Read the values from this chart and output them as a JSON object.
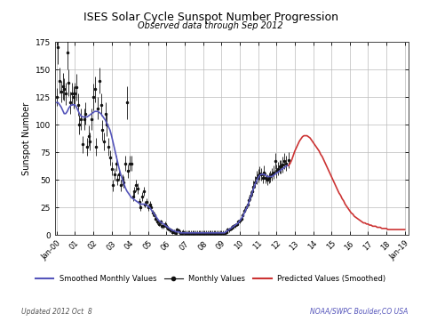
{
  "title": "ISES Solar Cycle Sunspot Number Progression",
  "subtitle": "Observed data through Sep 2012",
  "ylabel": "Sunspot Number",
  "footer_left": "Updated 2012 Oct  8",
  "footer_right": "NOAA/SWPC Boulder,CO USA",
  "ylim": [
    0,
    175
  ],
  "yticks": [
    0,
    25,
    50,
    75,
    100,
    125,
    150,
    175
  ],
  "smoothed_color": "#5555bb",
  "monthly_color": "#111111",
  "predicted_color": "#cc3333",
  "legend_entries": [
    "Smoothed Monthly Values",
    "Monthly Values",
    "Predicted Values (Smoothed)"
  ],
  "smoothed_monthly": {
    "t": [
      2000.0,
      2000.083,
      2000.167,
      2000.25,
      2000.333,
      2000.417,
      2000.5,
      2000.583,
      2000.667,
      2000.75,
      2000.833,
      2000.917,
      2001.0,
      2001.083,
      2001.167,
      2001.25,
      2001.333,
      2001.417,
      2001.5,
      2001.583,
      2001.667,
      2001.75,
      2001.833,
      2001.917,
      2002.0,
      2002.083,
      2002.167,
      2002.25,
      2002.333,
      2002.417,
      2002.5,
      2002.583,
      2002.667,
      2002.75,
      2002.833,
      2002.917,
      2003.0,
      2003.083,
      2003.167,
      2003.25,
      2003.333,
      2003.417,
      2003.5,
      2003.583,
      2003.667,
      2003.75,
      2003.833,
      2003.917,
      2004.0,
      2004.083,
      2004.167,
      2004.25,
      2004.333,
      2004.417,
      2004.5,
      2004.583,
      2004.667,
      2004.75,
      2004.833,
      2004.917,
      2005.0,
      2005.083,
      2005.167,
      2005.25,
      2005.333,
      2005.417,
      2005.5,
      2005.583,
      2005.667,
      2005.75,
      2005.833,
      2005.917,
      2006.0,
      2006.083,
      2006.167,
      2006.25,
      2006.333,
      2006.417,
      2006.5,
      2006.583,
      2006.667,
      2006.75,
      2006.833,
      2006.917,
      2007.0,
      2007.083,
      2007.167,
      2007.25,
      2007.333,
      2007.417,
      2007.5,
      2007.583,
      2007.667,
      2007.75,
      2007.833,
      2007.917,
      2008.0,
      2008.083,
      2008.167,
      2008.25,
      2008.333,
      2008.417,
      2008.5,
      2008.583,
      2008.667,
      2008.75,
      2008.833,
      2008.917,
      2009.0,
      2009.083,
      2009.167,
      2009.25,
      2009.333,
      2009.417,
      2009.5,
      2009.583,
      2009.667,
      2009.75,
      2009.833,
      2009.917,
      2010.0,
      2010.083,
      2010.167,
      2010.25,
      2010.333,
      2010.417,
      2010.5,
      2010.583,
      2010.667,
      2010.75,
      2010.833,
      2010.917,
      2011.0,
      2011.083,
      2011.167,
      2011.25,
      2011.333,
      2011.417,
      2011.5,
      2011.583,
      2011.667,
      2011.75,
      2011.833,
      2011.917,
      2012.0,
      2012.083,
      2012.167,
      2012.25,
      2012.333,
      2012.417,
      2012.5,
      2012.583,
      2012.667
    ],
    "v": [
      120,
      120,
      118,
      116,
      113,
      110,
      110,
      112,
      115,
      117,
      118,
      118,
      118,
      116,
      113,
      110,
      108,
      107,
      107,
      107,
      107,
      108,
      109,
      110,
      111,
      112,
      112,
      112,
      111,
      110,
      108,
      106,
      104,
      101,
      98,
      95,
      90,
      84,
      78,
      72,
      66,
      60,
      55,
      51,
      47,
      43,
      40,
      38,
      36,
      34,
      33,
      32,
      31,
      30,
      29,
      28,
      28,
      28,
      28,
      27,
      26,
      25,
      23,
      21,
      19,
      17,
      15,
      13,
      12,
      11,
      10,
      9,
      8,
      7,
      6,
      5,
      4,
      4,
      3,
      3,
      3,
      2,
      2,
      2,
      2,
      2,
      2,
      2,
      2,
      2,
      2,
      2,
      2,
      2,
      2,
      2,
      2,
      2,
      2,
      2,
      2,
      2,
      2,
      2,
      2,
      2,
      2,
      2,
      2,
      2,
      2,
      3,
      4,
      5,
      6,
      7,
      8,
      9,
      10,
      11,
      13,
      15,
      17,
      20,
      23,
      26,
      30,
      34,
      38,
      42,
      46,
      49,
      52,
      54,
      55,
      55,
      55,
      54,
      53,
      53,
      53,
      53,
      54,
      55,
      56,
      57,
      58,
      59,
      60,
      61,
      62,
      63,
      63
    ]
  },
  "monthly_values": {
    "t": [
      2000.0,
      2000.083,
      2000.167,
      2000.25,
      2000.333,
      2000.417,
      2000.5,
      2000.583,
      2000.667,
      2000.75,
      2000.833,
      2000.917,
      2001.0,
      2001.083,
      2001.167,
      2001.25,
      2001.333,
      2001.417,
      2001.5,
      2001.583,
      2001.667,
      2001.75,
      2001.833,
      2001.917,
      2002.0,
      2002.083,
      2002.167,
      2002.25,
      2002.333,
      2002.417,
      2002.5,
      2002.583,
      2002.667,
      2002.75,
      2002.833,
      2002.917,
      2003.0,
      2003.083,
      2003.167,
      2003.25,
      2003.333,
      2003.417,
      2003.5,
      2003.583,
      2003.667,
      2003.75,
      2003.833,
      2003.917,
      2004.0,
      2004.083,
      2004.167,
      2004.25,
      2004.333,
      2004.417,
      2004.5,
      2004.583,
      2004.667,
      2004.75,
      2004.833,
      2004.917,
      2005.0,
      2005.083,
      2005.167,
      2005.25,
      2005.333,
      2005.417,
      2005.5,
      2005.583,
      2005.667,
      2005.75,
      2005.833,
      2005.917,
      2006.0,
      2006.083,
      2006.167,
      2006.25,
      2006.333,
      2006.417,
      2006.5,
      2006.583,
      2006.667,
      2006.75,
      2006.833,
      2006.917,
      2007.0,
      2007.083,
      2007.167,
      2007.25,
      2007.333,
      2007.417,
      2007.5,
      2007.583,
      2007.667,
      2007.75,
      2007.833,
      2007.917,
      2008.0,
      2008.083,
      2008.167,
      2008.25,
      2008.333,
      2008.417,
      2008.5,
      2008.583,
      2008.667,
      2008.75,
      2008.833,
      2008.917,
      2009.0,
      2009.083,
      2009.167,
      2009.25,
      2009.333,
      2009.417,
      2009.5,
      2009.583,
      2009.667,
      2009.75,
      2009.833,
      2009.917,
      2010.0,
      2010.083,
      2010.167,
      2010.25,
      2010.333,
      2010.417,
      2010.5,
      2010.583,
      2010.667,
      2010.75,
      2010.833,
      2010.917,
      2011.0,
      2011.083,
      2011.167,
      2011.25,
      2011.333,
      2011.417,
      2011.5,
      2011.583,
      2011.667,
      2011.75,
      2011.833,
      2011.917,
      2012.0,
      2012.083,
      2012.167,
      2012.25,
      2012.333,
      2012.417,
      2012.5,
      2012.667
    ],
    "v": [
      125,
      170,
      140,
      130,
      135,
      132,
      128,
      165,
      138,
      120,
      128,
      125,
      128,
      134,
      118,
      100,
      105,
      82,
      105,
      110,
      80,
      90,
      85,
      105,
      125,
      132,
      80,
      115,
      140,
      118,
      95,
      85,
      110,
      100,
      80,
      70,
      60,
      45,
      55,
      65,
      50,
      55,
      45,
      50,
      48,
      65,
      120,
      58,
      65,
      65,
      35,
      40,
      45,
      42,
      30,
      25,
      35,
      40,
      28,
      30,
      25,
      28,
      25,
      20,
      18,
      15,
      12,
      10,
      12,
      8,
      8,
      10,
      8,
      6,
      5,
      4,
      3,
      3,
      2,
      5,
      4,
      2,
      2,
      3,
      2,
      2,
      2,
      2,
      2,
      2,
      2,
      2,
      2,
      2,
      2,
      2,
      2,
      2,
      2,
      2,
      2,
      2,
      2,
      2,
      2,
      2,
      2,
      2,
      2,
      2,
      2,
      3,
      5,
      5,
      6,
      7,
      8,
      9,
      10,
      12,
      13,
      15,
      18,
      22,
      25,
      28,
      32,
      36,
      40,
      44,
      48,
      52,
      54,
      56,
      55,
      52,
      57,
      52,
      50,
      52,
      53,
      55,
      57,
      67,
      58,
      60,
      62,
      62,
      64,
      67,
      65,
      68
    ],
    "errlo": [
      8,
      15,
      12,
      10,
      12,
      10,
      10,
      15,
      12,
      10,
      10,
      10,
      10,
      12,
      10,
      9,
      10,
      8,
      10,
      10,
      8,
      9,
      8,
      10,
      12,
      12,
      8,
      10,
      12,
      10,
      9,
      8,
      10,
      10,
      8,
      7,
      6,
      5,
      6,
      7,
      5,
      6,
      5,
      5,
      5,
      7,
      15,
      6,
      7,
      7,
      4,
      4,
      5,
      5,
      3,
      3,
      4,
      4,
      3,
      3,
      3,
      3,
      3,
      3,
      2,
      2,
      2,
      2,
      2,
      2,
      2,
      2,
      2,
      2,
      2,
      2,
      2,
      2,
      2,
      2,
      2,
      2,
      2,
      2,
      2,
      2,
      2,
      2,
      2,
      2,
      2,
      2,
      2,
      2,
      2,
      2,
      2,
      2,
      2,
      2,
      2,
      2,
      2,
      2,
      2,
      2,
      2,
      2,
      2,
      2,
      2,
      2,
      2,
      2,
      2,
      2,
      2,
      2,
      2,
      2,
      2,
      2,
      2,
      2,
      2,
      2,
      3,
      4,
      4,
      5,
      5,
      6,
      6,
      6,
      6,
      5,
      6,
      5,
      5,
      5,
      5,
      6,
      6,
      7,
      6,
      6,
      6,
      6,
      7,
      7,
      7,
      7
    ],
    "errhi": [
      8,
      15,
      12,
      10,
      12,
      10,
      10,
      15,
      12,
      10,
      10,
      10,
      10,
      12,
      10,
      9,
      10,
      8,
      10,
      10,
      8,
      9,
      8,
      10,
      12,
      12,
      8,
      10,
      12,
      10,
      9,
      8,
      10,
      10,
      8,
      7,
      6,
      5,
      6,
      7,
      5,
      6,
      5,
      5,
      5,
      7,
      15,
      6,
      7,
      7,
      4,
      4,
      5,
      5,
      3,
      3,
      4,
      4,
      3,
      3,
      3,
      3,
      3,
      3,
      2,
      2,
      2,
      2,
      2,
      2,
      2,
      2,
      2,
      2,
      2,
      2,
      2,
      2,
      2,
      2,
      2,
      2,
      2,
      2,
      2,
      2,
      2,
      2,
      2,
      2,
      2,
      2,
      2,
      2,
      2,
      2,
      2,
      2,
      2,
      2,
      2,
      2,
      2,
      2,
      2,
      2,
      2,
      2,
      2,
      2,
      2,
      2,
      2,
      2,
      2,
      2,
      2,
      2,
      2,
      2,
      2,
      2,
      2,
      2,
      2,
      2,
      3,
      4,
      4,
      5,
      5,
      6,
      6,
      6,
      6,
      5,
      6,
      5,
      5,
      5,
      5,
      6,
      6,
      7,
      6,
      6,
      6,
      6,
      7,
      7,
      7,
      7
    ]
  },
  "predicted": {
    "t": [
      2012.667,
      2012.75,
      2012.833,
      2012.917,
      2013.0,
      2013.083,
      2013.167,
      2013.25,
      2013.333,
      2013.417,
      2013.5,
      2013.583,
      2013.667,
      2013.75,
      2013.833,
      2013.917,
      2014.0,
      2014.083,
      2014.167,
      2014.25,
      2014.333,
      2014.417,
      2014.5,
      2014.583,
      2014.667,
      2014.75,
      2014.833,
      2014.917,
      2015.0,
      2015.083,
      2015.167,
      2015.25,
      2015.333,
      2015.417,
      2015.5,
      2015.583,
      2015.667,
      2015.75,
      2015.833,
      2015.917,
      2016.0,
      2016.083,
      2016.167,
      2016.25,
      2016.333,
      2016.417,
      2016.5,
      2016.583,
      2016.667,
      2016.75,
      2016.833,
      2016.917,
      2017.0,
      2017.083,
      2017.167,
      2017.25,
      2017.333,
      2017.417,
      2017.5,
      2017.583,
      2017.667,
      2017.75,
      2017.833,
      2017.917,
      2018.0,
      2018.083,
      2018.167,
      2018.25,
      2018.333,
      2018.417,
      2018.5,
      2018.583,
      2018.667,
      2018.75,
      2018.833,
      2018.917,
      2019.0
    ],
    "v": [
      63,
      65,
      68,
      72,
      76,
      79,
      82,
      85,
      87,
      89,
      90,
      90,
      90,
      89,
      88,
      86,
      84,
      82,
      80,
      78,
      76,
      73,
      71,
      68,
      65,
      62,
      59,
      56,
      53,
      50,
      47,
      44,
      41,
      38,
      36,
      33,
      31,
      28,
      26,
      24,
      22,
      20,
      19,
      17,
      16,
      15,
      14,
      13,
      12,
      11,
      11,
      10,
      10,
      9,
      9,
      8,
      8,
      8,
      7,
      7,
      7,
      6,
      6,
      6,
      6,
      5,
      5,
      5,
      5,
      5,
      5,
      5,
      5,
      5,
      5,
      5,
      5
    ]
  },
  "xlim": [
    1999.9,
    2019.2
  ],
  "xtick_years": [
    2000,
    2001,
    2002,
    2003,
    2004,
    2005,
    2006,
    2007,
    2008,
    2009,
    2010,
    2011,
    2012,
    2013,
    2014,
    2015,
    2016,
    2017,
    2018,
    2019
  ],
  "xtick_labels": [
    "Jan-00",
    "01",
    "02",
    "03",
    "04",
    "05",
    "06",
    "07",
    "08",
    "09",
    "10",
    "11",
    "12",
    "13",
    "14",
    "15",
    "16",
    "17",
    "18",
    "Jan-19"
  ]
}
